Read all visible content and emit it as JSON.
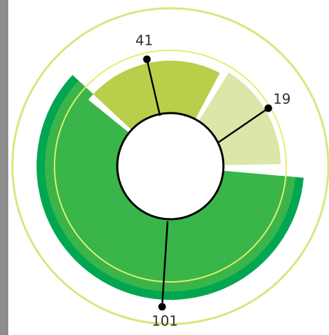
{
  "chart_data": {
    "type": "pie",
    "values": [
      41,
      19,
      101
    ],
    "labels": [
      "41",
      "19",
      "101"
    ],
    "colors": {
      "outer_ring": "#d8e67d",
      "outer_band": "#d9ece3",
      "main_green": "#00a651",
      "inner_green": "#39b54a",
      "top_left": "#b9cf4b",
      "top_right": "#dbe6a8",
      "ring_line": "#e0f06d",
      "center": "#ffffff",
      "stroke": "#000000"
    }
  }
}
